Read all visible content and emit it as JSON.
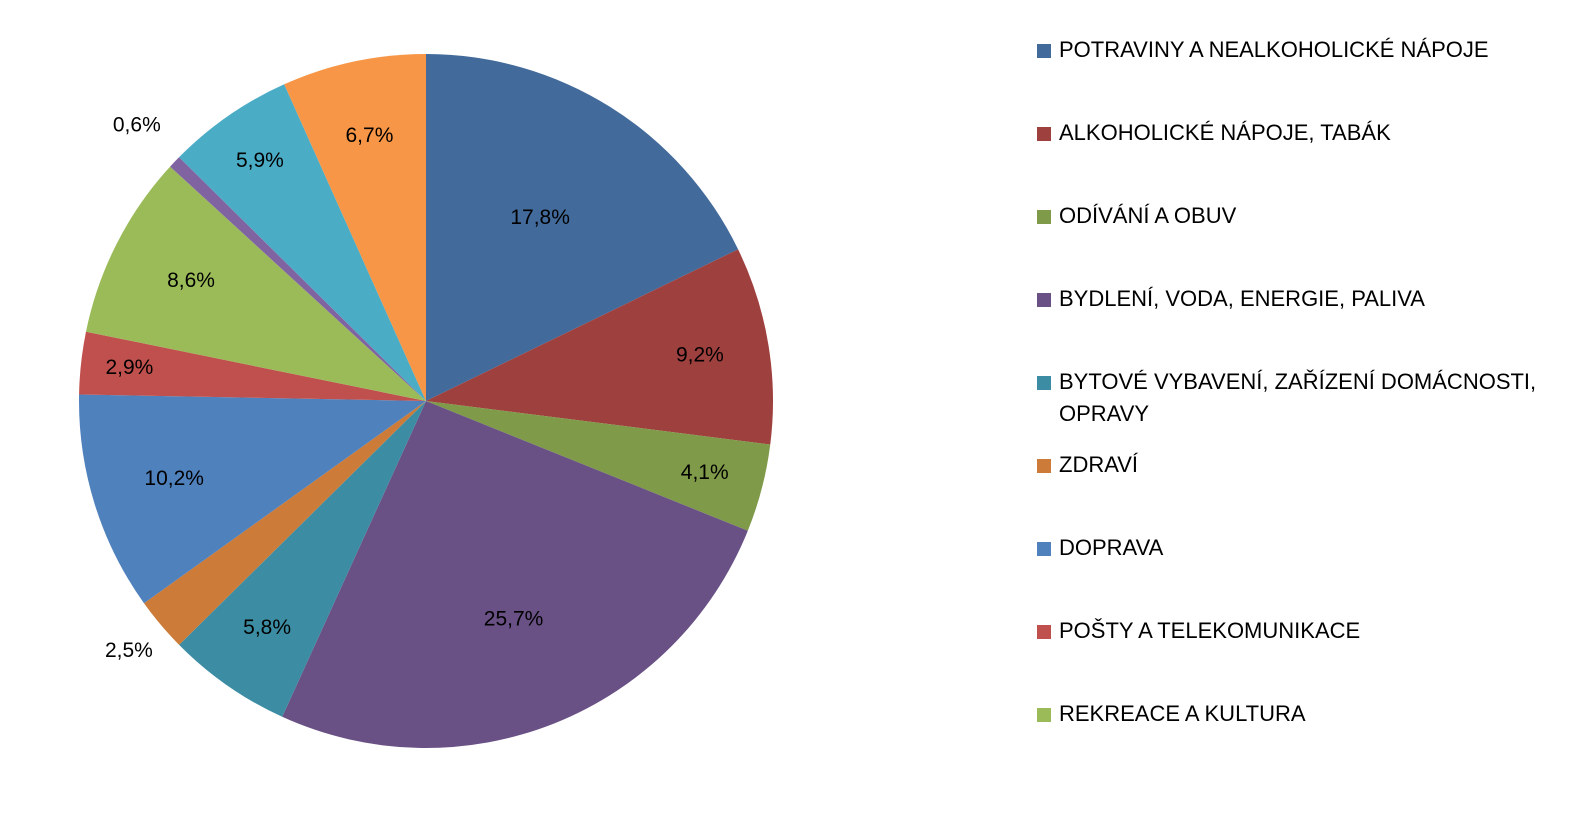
{
  "chart_data": {
    "type": "pie",
    "title": "",
    "start_angle_deg": 0,
    "direction": "clockwise",
    "legend_position": "right",
    "slices": [
      {
        "name": "POTRAVINY A NEALKOHOLICKÉ NÁPOJE",
        "value": 17.8,
        "label": "17,8%",
        "color": "#426a9a"
      },
      {
        "name": "ALKOHOLICKÉ NÁPOJE, TABÁK",
        "value": 9.2,
        "label": "9,2%",
        "color": "#9e403e"
      },
      {
        "name": "ODÍVÁNÍ A OBUV",
        "value": 4.1,
        "label": "4,1%",
        "color": "#7f9a48"
      },
      {
        "name": "BYDLENÍ, VODA, ENERGIE, PALIVA",
        "value": 25.7,
        "label": "25,7%",
        "color": "#695185"
      },
      {
        "name": "BYTOVÉ VYBAVENÍ, ZAŘÍZENÍ DOMÁCNOSTI, OPRAVY",
        "value": 5.8,
        "label": "5,8%",
        "color": "#3c8da3"
      },
      {
        "name": "ZDRAVÍ",
        "value": 2.5,
        "label": "2,5%",
        "color": "#cc7b38"
      },
      {
        "name": "DOPRAVA",
        "value": 10.2,
        "label": "10,2%",
        "color": "#4f81bd"
      },
      {
        "name": "POŠTY A TELEKOMUNIKACE",
        "value": 2.9,
        "label": "2,9%",
        "color": "#c0504d"
      },
      {
        "name": "REKREACE  A KULTURA",
        "value": 8.6,
        "label": "8,6%",
        "color": "#9bbb59"
      },
      {
        "name": "",
        "value": 0.6,
        "label": "0,6%",
        "color": "#8064a2"
      },
      {
        "name": "",
        "value": 5.9,
        "label": "5,9%",
        "color": "#4bacc6"
      },
      {
        "name": "",
        "value": 6.7,
        "label": "6,7%",
        "color": "#f79646"
      }
    ]
  }
}
